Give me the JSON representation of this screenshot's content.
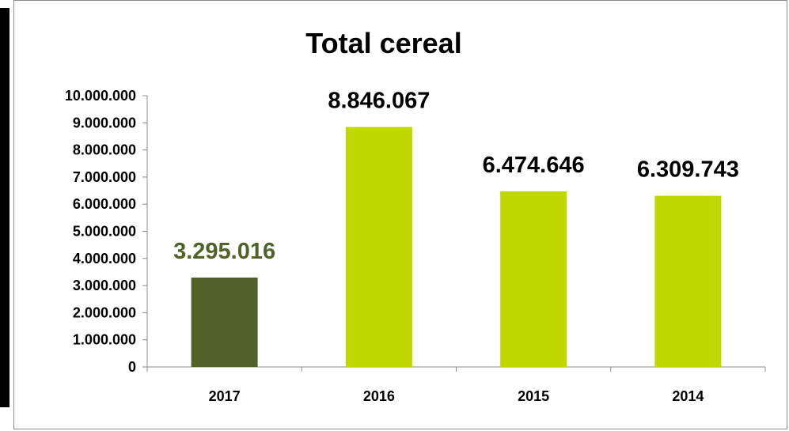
{
  "chart_data": {
    "type": "bar",
    "title": "Total cereal",
    "xlabel": "",
    "ylabel": "",
    "categories": [
      "2017",
      "2016",
      "2015",
      "2014"
    ],
    "values": [
      3295016,
      8846067,
      6474646,
      6309743
    ],
    "data_labels": [
      "3.295.016",
      "8.846.067",
      "6.474.646",
      "6.309.743"
    ],
    "ylim": [
      0,
      10000000
    ],
    "y_ticks": [
      0,
      1000000,
      2000000,
      3000000,
      4000000,
      5000000,
      6000000,
      7000000,
      8000000,
      9000000,
      10000000
    ],
    "y_tick_labels": [
      "0",
      "1.000.000",
      "2.000.000",
      "3.000.000",
      "4.000.000",
      "5.000.000",
      "6.000.000",
      "7.000.000",
      "8.000.000",
      "9.000.000",
      "10.000.000"
    ],
    "grid": false,
    "legend": "none",
    "colors": {
      "highlight_bar": "#4f6228",
      "bar": "#c0d700",
      "highlight_label": "#4f6228",
      "label": "#000000"
    },
    "highlight_index": 0
  }
}
